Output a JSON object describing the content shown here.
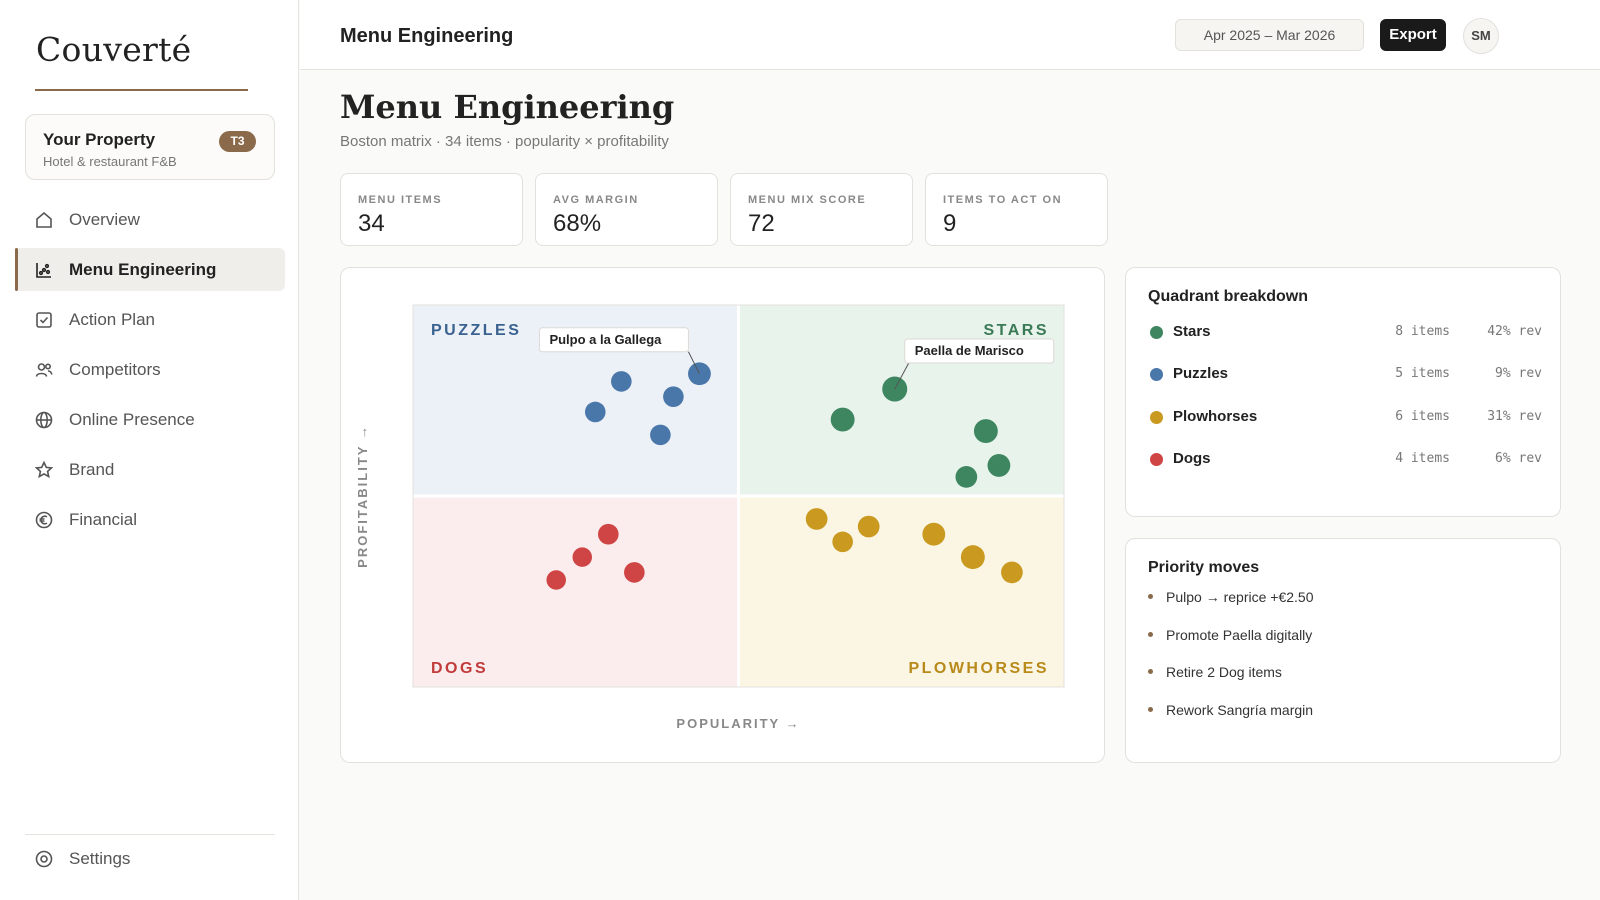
{
  "app": {
    "logo": "Couverté"
  },
  "property": {
    "name": "Your Property",
    "subtitle": "Hotel & restaurant F&B",
    "badge": "T3"
  },
  "nav": [
    {
      "label": "Overview",
      "icon": "home-icon"
    },
    {
      "label": "Menu Engineering",
      "icon": "scatter-chart-icon",
      "active": true
    },
    {
      "label": "Action Plan",
      "icon": "checkbox-icon"
    },
    {
      "label": "Competitors",
      "icon": "users-icon"
    },
    {
      "label": "Online Presence",
      "icon": "globe-icon"
    },
    {
      "label": "Brand",
      "icon": "star-icon"
    },
    {
      "label": "Financial",
      "icon": "euro-icon"
    }
  ],
  "settings": {
    "label": "Settings",
    "icon": "gear-icon"
  },
  "topbar": {
    "title": "Menu Engineering",
    "date_range": "Apr 2025 – Mar 2026",
    "export_label": "Export",
    "avatar_initials": "SM"
  },
  "page": {
    "title": "Menu Engineering",
    "subtitle": "Boston matrix · 34 items · popularity × profitability"
  },
  "kpis": [
    {
      "label": "MENU ITEMS",
      "value": "34"
    },
    {
      "label": "AVG MARGIN",
      "value": "68%"
    },
    {
      "label": "MENU MIX SCORE",
      "value": "72"
    },
    {
      "label": "ITEMS TO ACT ON",
      "value": "9"
    }
  ],
  "colors": {
    "accent": "#8a6a4a",
    "stars": "#3d8660",
    "puzzles": "#4a77aa",
    "plowhorses": "#c99a1f",
    "dogs": "#cf4444"
  },
  "chart_data": {
    "type": "scatter",
    "xlabel": "POPULARITY →",
    "ylabel": "PROFITABILITY →",
    "xlim": [
      0,
      100
    ],
    "ylim": [
      0,
      100
    ],
    "quadrants": [
      {
        "key": "puzzles",
        "label": "PUZZLES",
        "fill": "#ecf1f7",
        "text": "#3a6290"
      },
      {
        "key": "stars",
        "label": "STARS",
        "fill": "#e8f3ec",
        "text": "#3a7a55"
      },
      {
        "key": "dogs",
        "label": "DOGS",
        "fill": "#fbeded",
        "text": "#c23b3b"
      },
      {
        "key": "plowhorses",
        "label": "PLOWHORSES",
        "fill": "#fbf5e4",
        "text": "#b88a1a"
      }
    ],
    "series": [
      {
        "name": "Puzzles",
        "quadrant": "puzzles",
        "points": [
          {
            "x": 28,
            "y": 72,
            "size": 6
          },
          {
            "x": 32,
            "y": 80,
            "size": 6
          },
          {
            "x": 40,
            "y": 76,
            "size": 6
          },
          {
            "x": 44,
            "y": 82,
            "size": 8,
            "label": "Pulpo a la Gallega"
          },
          {
            "x": 38,
            "y": 66,
            "size": 6
          }
        ]
      },
      {
        "name": "Stars",
        "quadrant": "stars",
        "points": [
          {
            "x": 74,
            "y": 78,
            "size": 10,
            "label": "Paella de Marisco"
          },
          {
            "x": 66,
            "y": 70,
            "size": 9
          },
          {
            "x": 88,
            "y": 67,
            "size": 9
          },
          {
            "x": 90,
            "y": 58,
            "size": 8
          },
          {
            "x": 85,
            "y": 55,
            "size": 7
          }
        ]
      },
      {
        "name": "Dogs",
        "quadrant": "dogs",
        "points": [
          {
            "x": 30,
            "y": 40,
            "size": 6
          },
          {
            "x": 26,
            "y": 34,
            "size": 5
          },
          {
            "x": 22,
            "y": 28,
            "size": 5
          },
          {
            "x": 34,
            "y": 30,
            "size": 6
          }
        ]
      },
      {
        "name": "Plowhorses",
        "quadrant": "plowhorses",
        "points": [
          {
            "x": 62,
            "y": 44,
            "size": 7
          },
          {
            "x": 66,
            "y": 38,
            "size": 6
          },
          {
            "x": 70,
            "y": 42,
            "size": 7
          },
          {
            "x": 80,
            "y": 40,
            "size": 8
          },
          {
            "x": 86,
            "y": 34,
            "size": 9
          },
          {
            "x": 92,
            "y": 30,
            "size": 7
          }
        ]
      }
    ]
  },
  "quadrant_breakdown": {
    "title": "Quadrant breakdown",
    "rows": [
      {
        "name": "Stars",
        "count": "8 items",
        "rev": "42% rev",
        "color": "#3d8660"
      },
      {
        "name": "Puzzles",
        "count": "5 items",
        "rev": "9% rev",
        "color": "#4a77aa"
      },
      {
        "name": "Plowhorses",
        "count": "6 items",
        "rev": "31% rev",
        "color": "#c99a1f"
      },
      {
        "name": "Dogs",
        "count": "4 items",
        "rev": "6% rev",
        "color": "#cf4444"
      }
    ]
  },
  "priority_moves": {
    "title": "Priority moves",
    "items": [
      "Pulpo → reprice +€2.50",
      "Promote Paella digitally",
      "Retire 2 Dog items",
      "Rework Sangría margin"
    ]
  }
}
